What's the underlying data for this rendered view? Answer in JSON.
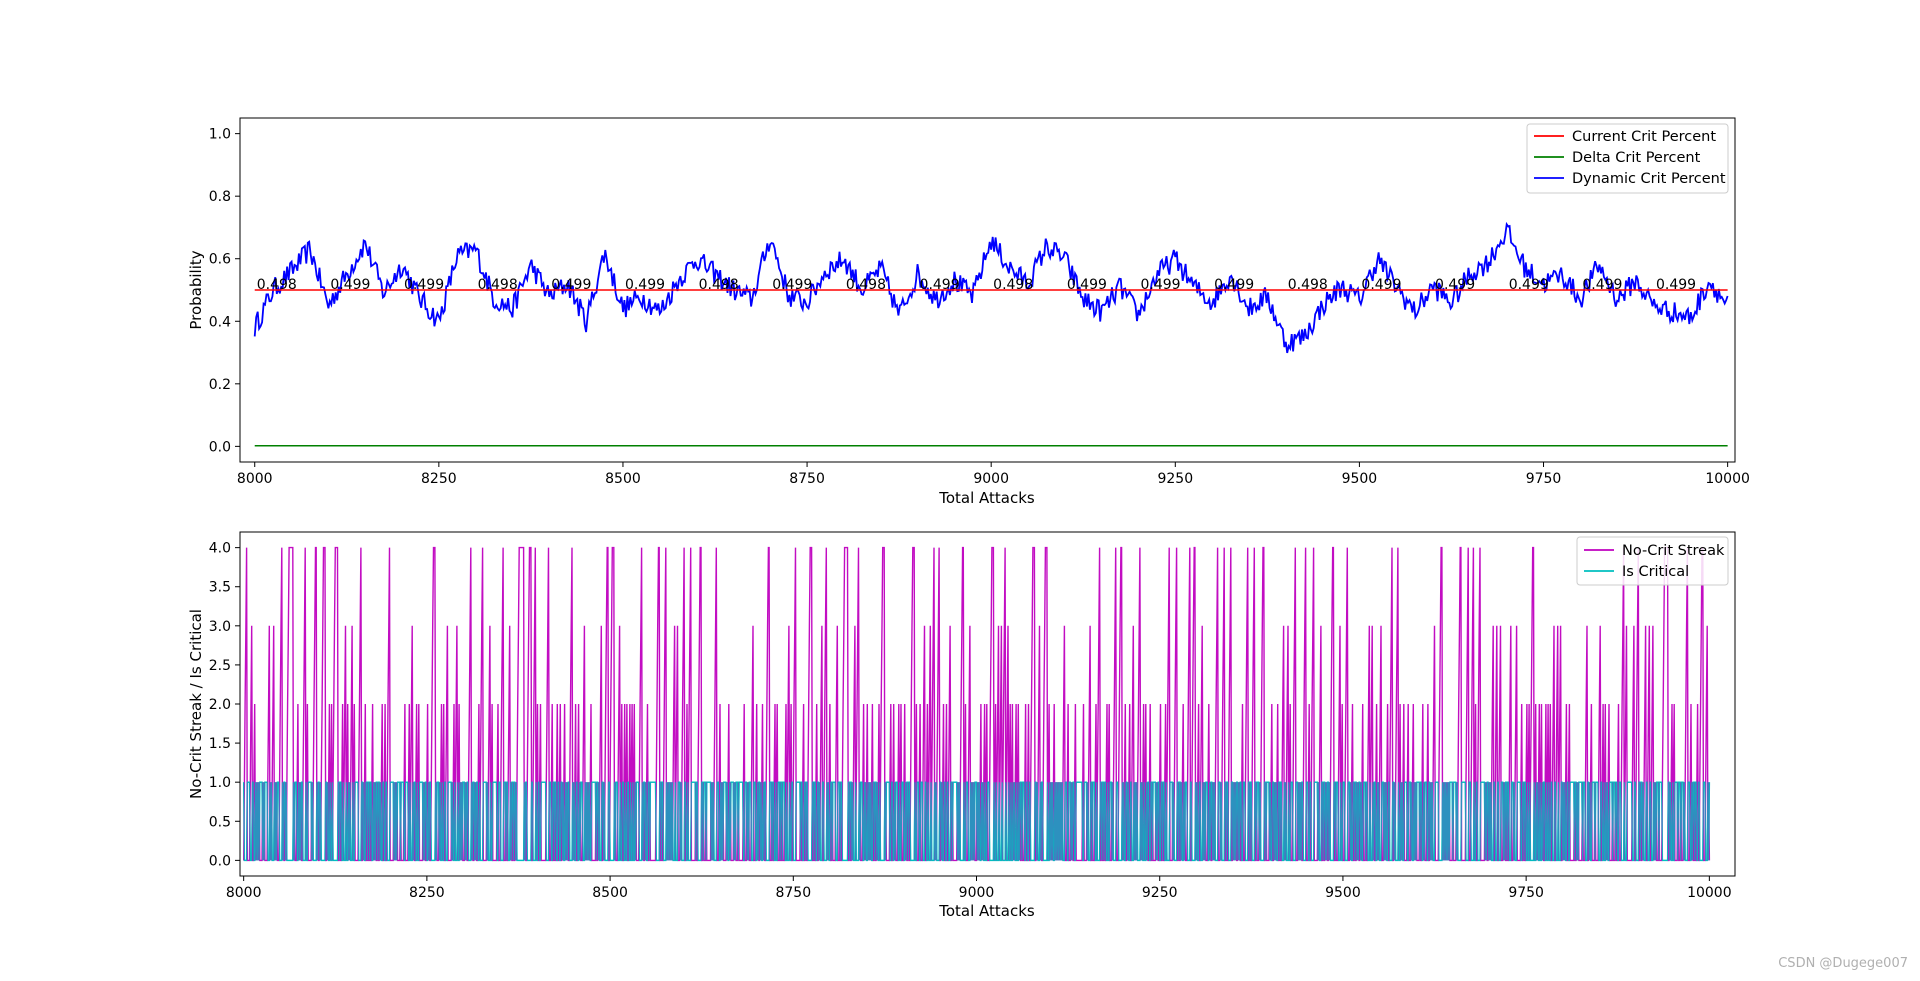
{
  "chart_data": [
    {
      "type": "line",
      "xlabel": "Total Attacks",
      "ylabel": "Probability",
      "xlim": [
        7980,
        10010
      ],
      "ylim": [
        -0.05,
        1.05
      ],
      "xticks": [
        8000,
        8250,
        8500,
        8750,
        9000,
        9250,
        9500,
        9750,
        10000
      ],
      "yticks": [
        "0.0",
        "0.2",
        "0.4",
        "0.6",
        "0.8",
        "1.0"
      ],
      "legend_position": "top-right",
      "series": [
        {
          "name": "Current Crit Percent",
          "color": "#ff0000",
          "constant": 0.5
        },
        {
          "name": "Delta Crit Percent",
          "color": "#008000",
          "constant": 0.002
        },
        {
          "name": "Dynamic Crit Percent",
          "color": "#0000ff",
          "x": [
            8000,
            8025,
            8050,
            8075,
            8100,
            8125,
            8150,
            8175,
            8200,
            8225,
            8250,
            8275,
            8300,
            8325,
            8350,
            8375,
            8400,
            8425,
            8450,
            8475,
            8500,
            8525,
            8550,
            8575,
            8600,
            8625,
            8650,
            8675,
            8700,
            8725,
            8750,
            8775,
            8800,
            8825,
            8850,
            8875,
            8900,
            8925,
            8950,
            8975,
            9000,
            9025,
            9050,
            9075,
            9100,
            9125,
            9150,
            9175,
            9200,
            9225,
            9250,
            9275,
            9300,
            9325,
            9350,
            9375,
            9400,
            9425,
            9450,
            9475,
            9500,
            9525,
            9550,
            9575,
            9600,
            9625,
            9650,
            9675,
            9700,
            9725,
            9750,
            9775,
            9800,
            9825,
            9850,
            9875,
            9900,
            9925,
            9950,
            9975,
            10000
          ],
          "y": [
            0.38,
            0.5,
            0.56,
            0.63,
            0.45,
            0.55,
            0.65,
            0.49,
            0.58,
            0.47,
            0.4,
            0.61,
            0.63,
            0.47,
            0.44,
            0.58,
            0.48,
            0.52,
            0.4,
            0.62,
            0.44,
            0.48,
            0.43,
            0.53,
            0.6,
            0.55,
            0.5,
            0.47,
            0.67,
            0.48,
            0.46,
            0.56,
            0.6,
            0.5,
            0.57,
            0.42,
            0.55,
            0.47,
            0.53,
            0.48,
            0.66,
            0.57,
            0.52,
            0.64,
            0.6,
            0.47,
            0.43,
            0.51,
            0.42,
            0.55,
            0.6,
            0.51,
            0.46,
            0.55,
            0.44,
            0.48,
            0.33,
            0.35,
            0.45,
            0.51,
            0.47,
            0.6,
            0.51,
            0.43,
            0.51,
            0.46,
            0.55,
            0.59,
            0.69,
            0.57,
            0.52,
            0.55,
            0.47,
            0.58,
            0.47,
            0.53,
            0.45,
            0.43,
            0.41,
            0.53,
            0.45
          ]
        }
      ],
      "annotations": [
        {
          "x": 8000,
          "y": 0.5,
          "text": "0.498"
        },
        {
          "x": 8100,
          "y": 0.5,
          "text": "0.499"
        },
        {
          "x": 8200,
          "y": 0.5,
          "text": "0.499"
        },
        {
          "x": 8300,
          "y": 0.5,
          "text": "0.498"
        },
        {
          "x": 8400,
          "y": 0.5,
          "text": "0.499"
        },
        {
          "x": 8500,
          "y": 0.5,
          "text": "0.499"
        },
        {
          "x": 8600,
          "y": 0.5,
          "text": "0.498"
        },
        {
          "x": 8700,
          "y": 0.5,
          "text": "0.499"
        },
        {
          "x": 8800,
          "y": 0.5,
          "text": "0.498"
        },
        {
          "x": 8900,
          "y": 0.5,
          "text": "0.499"
        },
        {
          "x": 9000,
          "y": 0.5,
          "text": "0.498"
        },
        {
          "x": 9100,
          "y": 0.5,
          "text": "0.499"
        },
        {
          "x": 9200,
          "y": 0.5,
          "text": "0.499"
        },
        {
          "x": 9300,
          "y": 0.5,
          "text": "0.499"
        },
        {
          "x": 9400,
          "y": 0.5,
          "text": "0.498"
        },
        {
          "x": 9500,
          "y": 0.5,
          "text": "0.499"
        },
        {
          "x": 9600,
          "y": 0.5,
          "text": "0.499"
        },
        {
          "x": 9700,
          "y": 0.5,
          "text": "0.499"
        },
        {
          "x": 9800,
          "y": 0.5,
          "text": "0.499"
        },
        {
          "x": 9900,
          "y": 0.5,
          "text": "0.499"
        }
      ]
    },
    {
      "type": "line",
      "xlabel": "Total Attacks",
      "ylabel": "No-Crit Streak / Is Critical",
      "xlim": [
        7995,
        10035
      ],
      "ylim": [
        -0.2,
        4.2
      ],
      "xticks": [
        8000,
        8250,
        8500,
        8750,
        9000,
        9250,
        9500,
        9750,
        10000
      ],
      "yticks": [
        "0.0",
        "0.5",
        "1.0",
        "1.5",
        "2.0",
        "2.5",
        "3.0",
        "3.5",
        "4.0"
      ],
      "legend_position": "top-right",
      "x_range": [
        8000,
        10000
      ],
      "series": [
        {
          "name": "No-Crit Streak",
          "color": "#bf00bf",
          "kind": "streak",
          "max": 4
        },
        {
          "name": "Is Critical",
          "color": "#00bfbf",
          "kind": "binary",
          "max": 1
        }
      ]
    }
  ],
  "watermark": "CSDN @Dugege007"
}
